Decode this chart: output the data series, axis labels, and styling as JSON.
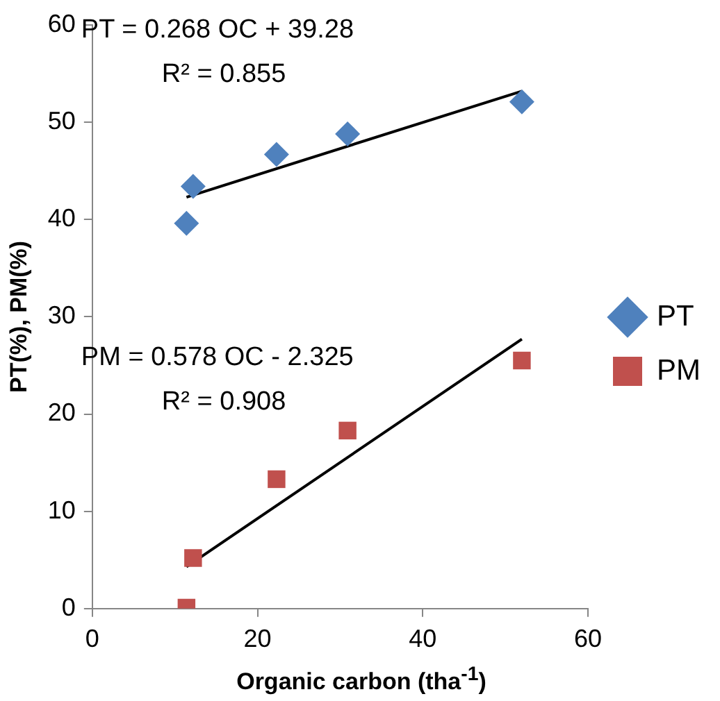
{
  "chart_data": {
    "type": "scatter",
    "xlabel": "Organic carbon (tha$^{-1}$)",
    "ylabel": "PT(%), PM(%)",
    "xlim": [
      0,
      60
    ],
    "xticks": [
      0,
      20,
      40,
      60
    ],
    "ylim": [
      0,
      60
    ],
    "yticks": [
      0,
      10,
      20,
      30,
      40,
      50,
      60
    ],
    "grid": false,
    "legend": "right",
    "annotations": [
      "PT = 0.268 OC + 39.28",
      "R² = 0.855",
      "PM = 0.578 OC - 2.325",
      "R² = 0.908"
    ],
    "series": [
      {
        "name": "PT",
        "color": "#4f81bd",
        "marker": "diamond",
        "x": [
          11.4,
          12.2,
          22.3,
          30.9,
          52.0
        ],
        "values": [
          39.6,
          43.4,
          46.7,
          48.8,
          52.1
        ]
      },
      {
        "name": "PM",
        "color": "#c0504d",
        "marker": "square",
        "x": [
          11.4,
          12.2,
          22.3,
          30.9,
          52.0
        ],
        "values": [
          0.1,
          5.2,
          13.3,
          18.3,
          25.5
        ]
      },
      {
        "type": "line",
        "color": "#000000",
        "marker": "none",
        "x": [
          11.4,
          52.0
        ],
        "values": [
          42.3,
          53.2
        ]
      },
      {
        "type": "line",
        "color": "#000000",
        "marker": "none",
        "x": [
          11.4,
          52.0
        ],
        "values": [
          4.3,
          27.7
        ]
      }
    ]
  }
}
